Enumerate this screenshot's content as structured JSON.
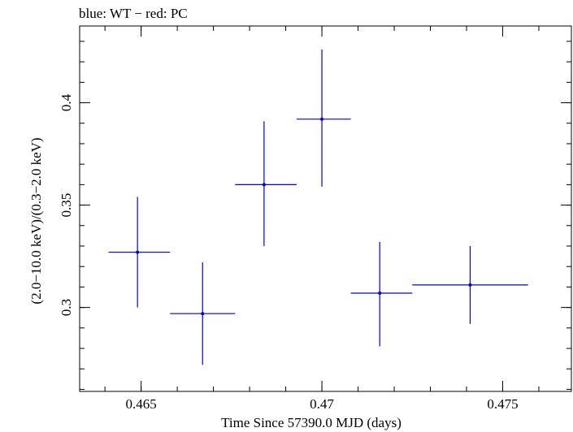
{
  "chart_data": {
    "type": "scatter",
    "title": "blue: WT − red: PC",
    "xlabel": "Time Since 57390.0 MJD (days)",
    "ylabel": "(2.0−10.0 keV)/(0.3−2.0 keV)",
    "xlim": [
      0.4633,
      0.4769
    ],
    "ylim": [
      0.259,
      0.4375
    ],
    "xticks": [
      0.465,
      0.47,
      0.475
    ],
    "xtick_labels": [
      "0.465",
      "0.47",
      "0.475"
    ],
    "yticks": [
      0.3,
      0.35,
      0.4
    ],
    "ytick_labels": [
      "0.3",
      "0.35",
      "0.4"
    ],
    "grid": false,
    "series": [
      {
        "color": "#0000ee",
        "points": [
          {
            "x": 0.4649,
            "xerr_low": 0.4641,
            "xerr_high": 0.4658,
            "y": 0.327,
            "yerr_low": 0.3,
            "yerr_high": 0.354
          },
          {
            "x": 0.4667,
            "xerr_low": 0.4658,
            "xerr_high": 0.4676,
            "y": 0.297,
            "yerr_low": 0.272,
            "yerr_high": 0.322
          },
          {
            "x": 0.4684,
            "xerr_low": 0.4676,
            "xerr_high": 0.4693,
            "y": 0.36,
            "yerr_low": 0.33,
            "yerr_high": 0.391
          },
          {
            "x": 0.47,
            "xerr_low": 0.4693,
            "xerr_high": 0.4708,
            "y": 0.392,
            "yerr_low": 0.359,
            "yerr_high": 0.426
          },
          {
            "x": 0.4716,
            "xerr_low": 0.4708,
            "xerr_high": 0.4725,
            "y": 0.307,
            "yerr_low": 0.281,
            "yerr_high": 0.332
          },
          {
            "x": 0.4741,
            "xerr_low": 0.4725,
            "xerr_high": 0.4757,
            "y": 0.311,
            "yerr_low": 0.292,
            "yerr_high": 0.33
          }
        ]
      }
    ]
  }
}
